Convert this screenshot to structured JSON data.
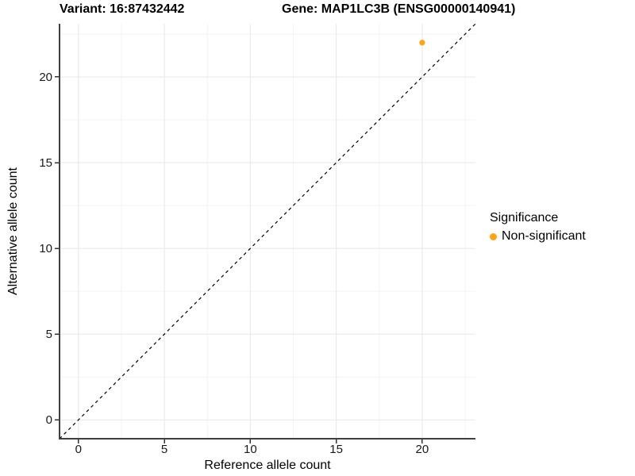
{
  "chart_data": {
    "type": "scatter",
    "title_left": "Variant: 16:87432442",
    "title_right": "Gene: MAP1LC3B (ENSG00000140941)",
    "xlabel": "Reference allele count",
    "ylabel": "Alternative allele count",
    "xlim": [
      -1.1,
      23.1
    ],
    "ylim": [
      -1.1,
      23.1
    ],
    "x_ticks": [
      0,
      5,
      10,
      15,
      20
    ],
    "y_ticks": [
      0,
      5,
      10,
      15,
      20
    ],
    "x_minor_ticks": [
      2.5,
      7.5,
      12.5,
      17.5,
      22.5
    ],
    "y_minor_ticks": [
      2.5,
      7.5,
      12.5,
      17.5,
      22.5
    ],
    "grid": "major+minor",
    "identity_line": {
      "style": "dashed",
      "equation": "y = x",
      "color": "#000000"
    },
    "series": [
      {
        "name": "Non-significant",
        "color": "#FFA40E",
        "points": [
          {
            "x": 20,
            "y": 22
          }
        ]
      }
    ],
    "legend": {
      "title": "Significance",
      "position": "right",
      "items": [
        {
          "label": "Non-significant",
          "color": "#FFA40E"
        }
      ]
    },
    "style": {
      "grid_major_color": "#e7e7e7",
      "grid_minor_color": "#f3f3f3",
      "axis_line_color": "#404040",
      "tick_color": "#333333",
      "text_color": "#1a1a1a"
    }
  }
}
